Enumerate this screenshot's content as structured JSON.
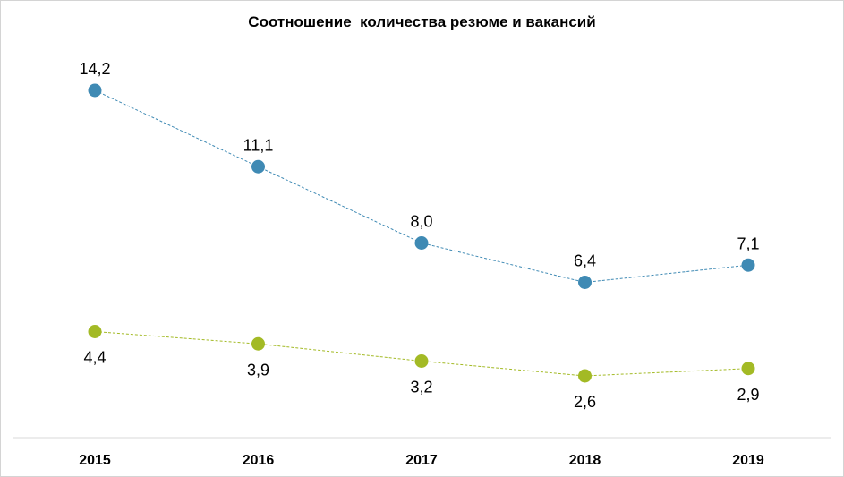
{
  "chart_data": {
    "type": "line",
    "title": "Соотношение  количества резюме и вакансий",
    "xlabel": "",
    "ylabel": "",
    "categories": [
      "2015",
      "2016",
      "2017",
      "2018",
      "2019"
    ],
    "series": [
      {
        "values": [
          14.2,
          11.1,
          8.0,
          6.4,
          7.1
        ],
        "labels": [
          "14,2",
          "11,1",
          "8,0",
          "6,4",
          "7,1"
        ],
        "color": "#3f8ab4",
        "line_style": "dashed",
        "label_position": "above"
      },
      {
        "values": [
          4.4,
          3.9,
          3.2,
          2.6,
          2.9
        ],
        "labels": [
          "4,4",
          "3,9",
          "3,2",
          "2,6",
          "2,9"
        ],
        "color": "#a3ba25",
        "line_style": "dashed",
        "label_position": "below"
      }
    ],
    "ylim": [
      0,
      16
    ],
    "grid": false,
    "legend": "none",
    "axis_line_color": "#d9d9d9"
  }
}
